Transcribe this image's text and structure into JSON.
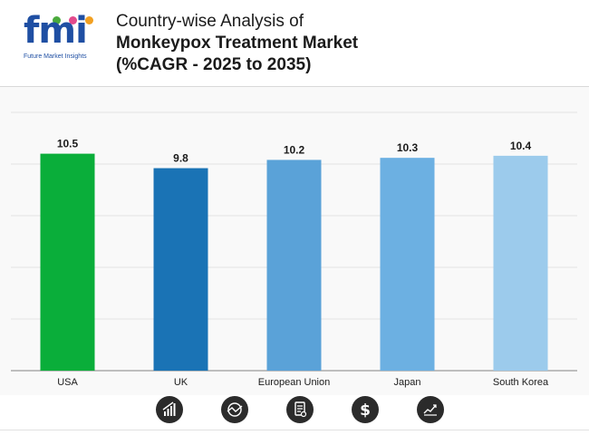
{
  "header": {
    "title_line1": "Country-wise Analysis of",
    "title_line2": "Monkeypox Treatment Market",
    "title_line3": "(%CAGR - 2025 to 2035)"
  },
  "logo": {
    "word": "fmi",
    "subtitle": "Future Market Insights",
    "dot_colors": [
      "#4aaa3c",
      "#e34a8c",
      "#f2a021"
    ]
  },
  "chart_data": {
    "type": "bar",
    "title": "Country-wise Analysis of Monkeypox Treatment Market (%CAGR - 2025 to 2035)",
    "categories": [
      "USA",
      "UK",
      "European Union",
      "Japan",
      "South Korea"
    ],
    "values": [
      10.5,
      9.8,
      10.2,
      10.3,
      10.4
    ],
    "value_labels": [
      "10.5",
      "9.8",
      "10.2",
      "10.3",
      "10.4"
    ],
    "colors": [
      "#0aae3a",
      "#1a73b5",
      "#5aa2d8",
      "#6cb0e2",
      "#9ccbec"
    ],
    "xlabel": "",
    "ylabel": "",
    "ylim": [
      0,
      12.5
    ],
    "grid": true,
    "legend": "none"
  },
  "footer": {
    "icons": [
      "bar-growth-icon",
      "globe-chart-icon",
      "document-search-icon",
      "dollar-icon",
      "line-trend-icon"
    ]
  }
}
